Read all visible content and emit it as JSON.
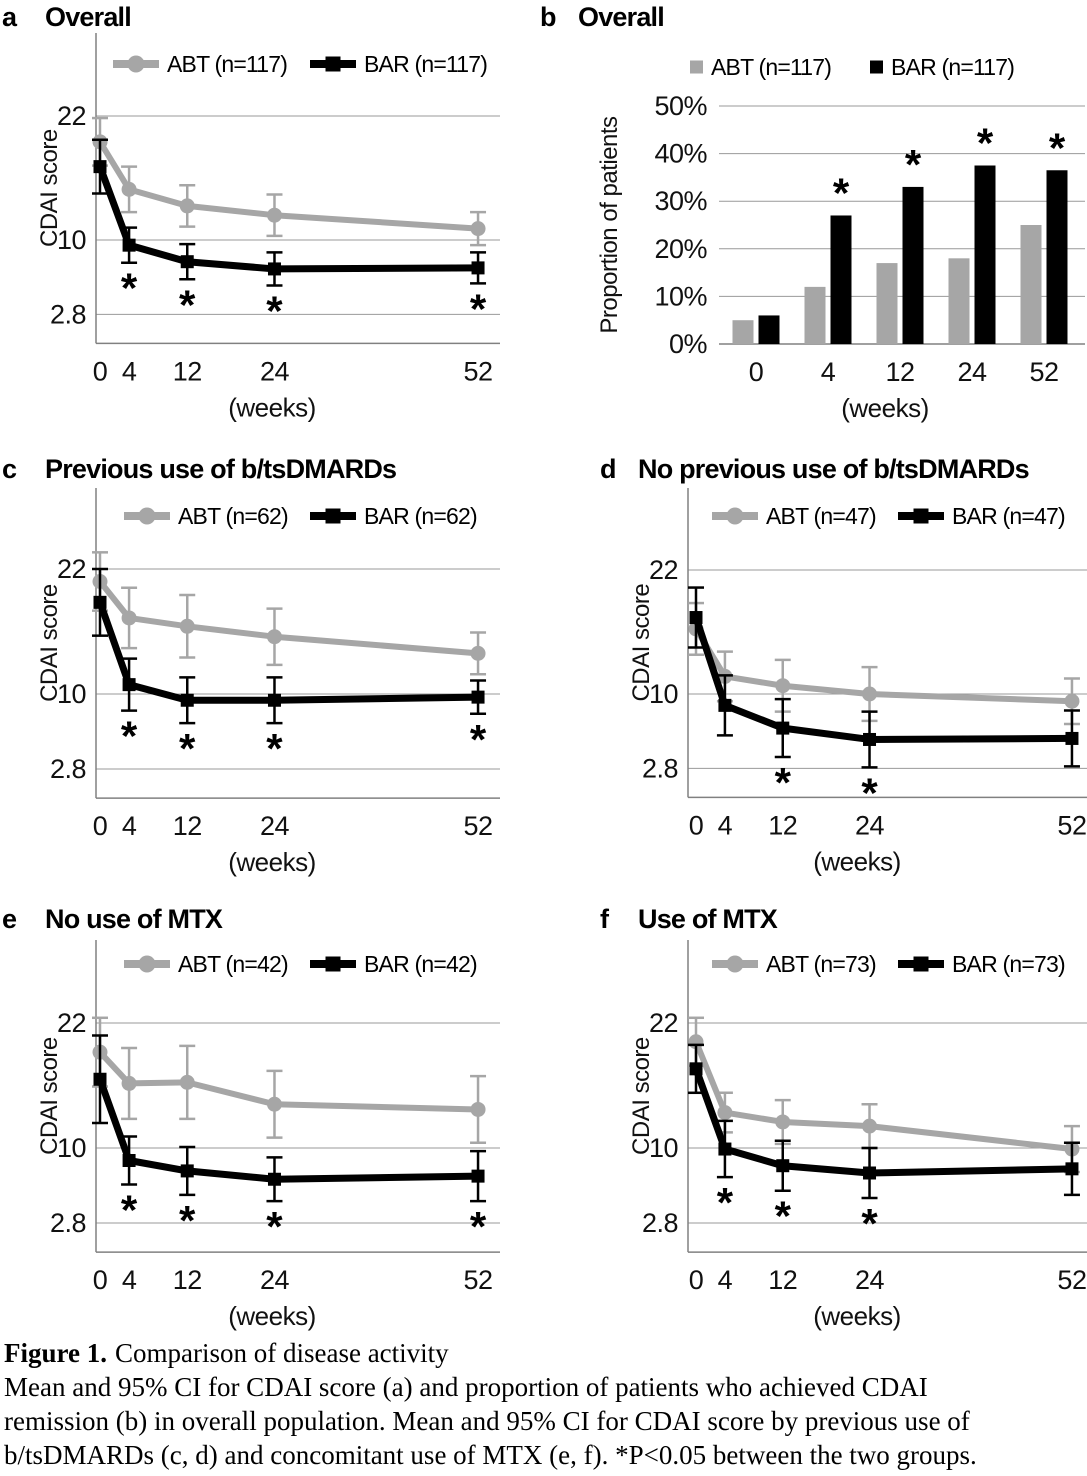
{
  "colors": {
    "abt": "#a6a6a6",
    "bar": "#000000",
    "grid": "#999999",
    "axis": "#808080",
    "text": "#000000",
    "background": "#ffffff"
  },
  "chart_data": [
    {
      "id": "a",
      "panel_label": "a",
      "title": "Overall",
      "type": "line",
      "xlabel": "(weeks)",
      "ylabel": "CDAI score",
      "x": [
        0,
        4,
        12,
        24,
        52
      ],
      "yticks": [
        22,
        10,
        2.8
      ],
      "ylim": [
        0,
        30
      ],
      "legend_position": "top",
      "grid": true,
      "sig_symbol": "*",
      "significant_weeks": [
        4,
        12,
        24,
        52
      ],
      "series": [
        {
          "name": "ABT (n=117)",
          "color": "#a6a6a6",
          "marker": "circle",
          "means": [
            19.5,
            14.9,
            13.3,
            12.4,
            11.1
          ],
          "ci95": [
            2.3,
            2.2,
            2.0,
            2.0,
            1.6
          ]
        },
        {
          "name": "BAR (n=117)",
          "color": "#000000",
          "marker": "square",
          "means": [
            17.1,
            9.5,
            7.9,
            7.2,
            7.3
          ],
          "ci95": [
            2.6,
            1.7,
            1.7,
            1.6,
            1.5
          ]
        }
      ]
    },
    {
      "id": "b",
      "panel_label": "b",
      "title": "Overall",
      "type": "bar",
      "xlabel": "(weeks)",
      "ylabel": "Proportion of patients",
      "x": [
        0,
        4,
        12,
        24,
        52
      ],
      "yticks_pct": [
        50,
        40,
        30,
        20,
        10,
        0
      ],
      "ylim_pct": [
        0,
        50
      ],
      "legend_position": "top",
      "grid": true,
      "sig_symbol": "*",
      "significant_weeks": [
        4,
        12,
        24,
        52
      ],
      "series": [
        {
          "name": "ABT (n=117)",
          "color": "#a6a6a6",
          "values_pct": [
            5,
            12,
            17,
            18,
            25
          ]
        },
        {
          "name": "BAR (n=117)",
          "color": "#000000",
          "values_pct": [
            6,
            27,
            33,
            37.5,
            36.5
          ]
        }
      ]
    },
    {
      "id": "c",
      "panel_label": "c",
      "title": "Previous use of b/tsDMARDs",
      "type": "line",
      "xlabel": "(weeks)",
      "ylabel": "CDAI score",
      "x": [
        0,
        4,
        12,
        24,
        52
      ],
      "yticks": [
        22,
        10,
        2.8
      ],
      "ylim": [
        0,
        30
      ],
      "legend_position": "top",
      "grid": true,
      "sig_symbol": "*",
      "significant_weeks": [
        4,
        12,
        24,
        52
      ],
      "series": [
        {
          "name": "ABT (n=62)",
          "color": "#a6a6a6",
          "marker": "circle",
          "means": [
            20.8,
            17.3,
            16.5,
            15.5,
            13.9
          ],
          "ci95": [
            2.8,
            2.9,
            3.0,
            2.7,
            2.0
          ]
        },
        {
          "name": "BAR (n=62)",
          "color": "#000000",
          "marker": "square",
          "means": [
            18.8,
            10.9,
            9.4,
            9.4,
            9.7
          ],
          "ci95": [
            3.2,
            2.5,
            2.2,
            2.2,
            1.6
          ]
        }
      ]
    },
    {
      "id": "d",
      "panel_label": "d",
      "title": "No previous use of b/tsDMARDs",
      "type": "line",
      "xlabel": "(weeks)",
      "ylabel": "CDAI score",
      "x": [
        0,
        4,
        12,
        24,
        52
      ],
      "yticks": [
        22,
        10,
        2.8
      ],
      "ylim": [
        0,
        30
      ],
      "legend_position": "top",
      "grid": true,
      "sig_symbol": "*",
      "significant_weeks": [
        12,
        24
      ],
      "series": [
        {
          "name": "ABT (n=47)",
          "color": "#a6a6a6",
          "marker": "circle",
          "means": [
            16.3,
            11.7,
            10.8,
            10.0,
            9.3
          ],
          "ci95": [
            2.5,
            2.4,
            2.5,
            2.6,
            2.2
          ]
        },
        {
          "name": "BAR (n=47)",
          "color": "#000000",
          "marker": "square",
          "means": [
            17.4,
            8.9,
            6.7,
            5.6,
            5.7
          ],
          "ci95": [
            2.9,
            2.9,
            2.8,
            2.7,
            2.7
          ]
        }
      ]
    },
    {
      "id": "e",
      "panel_label": "e",
      "title": "No use of MTX",
      "type": "line",
      "xlabel": "(weeks)",
      "ylabel": "CDAI score",
      "x": [
        0,
        4,
        12,
        24,
        52
      ],
      "yticks": [
        22,
        10,
        2.8
      ],
      "ylim": [
        0,
        30
      ],
      "legend_position": "top",
      "grid": true,
      "sig_symbol": "*",
      "significant_weeks": [
        4,
        12,
        24,
        52
      ],
      "series": [
        {
          "name": "ABT (n=42)",
          "color": "#a6a6a6",
          "marker": "circle",
          "means": [
            19.2,
            16.2,
            16.3,
            14.2,
            13.7
          ],
          "ci95": [
            3.3,
            3.4,
            3.5,
            3.2,
            3.2
          ]
        },
        {
          "name": "BAR (n=42)",
          "color": "#000000",
          "marker": "square",
          "means": [
            16.6,
            8.8,
            7.8,
            7.0,
            7.3
          ],
          "ci95": [
            4.2,
            2.3,
            2.3,
            2.1,
            2.4
          ]
        }
      ]
    },
    {
      "id": "f",
      "panel_label": "f",
      "title": "Use of MTX",
      "type": "line",
      "xlabel": "(weeks)",
      "ylabel": "CDAI score",
      "x": [
        0,
        4,
        12,
        24,
        52
      ],
      "yticks": [
        22,
        10,
        2.8
      ],
      "ylim": [
        0,
        30
      ],
      "legend_position": "top",
      "grid": true,
      "sig_symbol": "*",
      "significant_weeks": [
        4,
        12,
        24
      ],
      "series": [
        {
          "name": "ABT (n=73)",
          "color": "#a6a6a6",
          "marker": "circle",
          "means": [
            20.2,
            13.4,
            12.5,
            12.1,
            9.9
          ],
          "ci95": [
            2.3,
            1.9,
            2.1,
            2.1,
            2.2
          ]
        },
        {
          "name": "BAR (n=73)",
          "color": "#000000",
          "marker": "square",
          "means": [
            17.6,
            9.9,
            8.3,
            7.6,
            8.0
          ],
          "ci95": [
            2.3,
            2.7,
            2.4,
            2.4,
            2.5
          ]
        }
      ]
    }
  ],
  "caption": {
    "heading": "Figure 1.",
    "heading_rest": "Comparison of disease activity",
    "lines": [
      "Mean and 95% CI for CDAI score (a) and proportion of patients who achieved CDAI",
      "remission (b) in overall population. Mean and 95% CI for CDAI score by previous use of",
      "b/tsDMARDs (c, d) and concomitant use of MTX (e, f). *P<0.05 between the two groups."
    ]
  }
}
